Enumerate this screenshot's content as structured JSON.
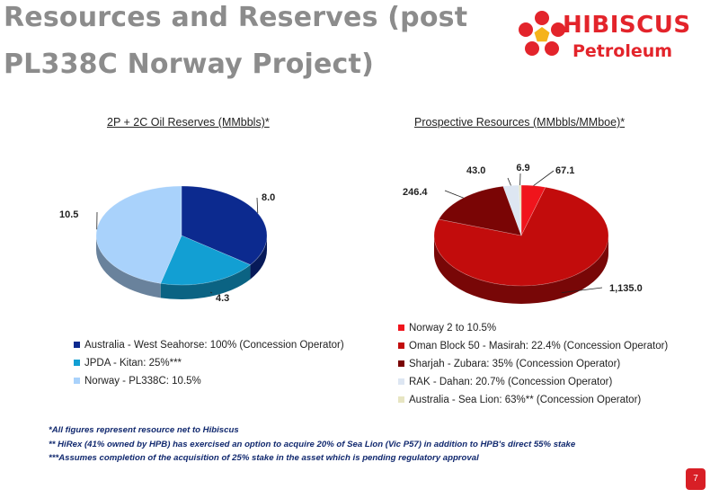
{
  "page": {
    "title": "Resources and Reserves (post PL338C Norway Project)",
    "page_number": "7"
  },
  "logo": {
    "name": "HIBISCUS",
    "sub": "Petroleum",
    "colors": {
      "red": "#e3242b",
      "yellow": "#f5b31a"
    }
  },
  "chart_data": [
    {
      "type": "pie",
      "style": "3d",
      "title": "2P + 2C Oil Reserves (MMbbls)*",
      "legend_position": "bottom",
      "series": [
        {
          "name": "Australia - West Seahorse: 100% (Concession Operator)",
          "value": 8.0,
          "label": "8.0",
          "color": "#0c2a8f"
        },
        {
          "name": "JPDA - Kitan: 25%***",
          "value": 4.3,
          "label": "4.3",
          "color": "#129fd3"
        },
        {
          "name": "Norway - PL338C: 10.5%",
          "value": 10.5,
          "label": "10.5",
          "color": "#a9d2fb"
        }
      ]
    },
    {
      "type": "pie",
      "style": "3d",
      "title": "Prospective Resources (MMbbls/MMboe)*",
      "legend_position": "bottom",
      "series": [
        {
          "name": "Norway 2 to 10.5%",
          "value": 67.1,
          "label": "67.1",
          "color": "#f0141c"
        },
        {
          "name": "Oman Block 50 - Masirah: 22.4% (Concession Operator)",
          "value": 1135.0,
          "label": "1,135.0",
          "color": "#c20c0c"
        },
        {
          "name": "Sharjah - Zubara: 35% (Concession Operator)",
          "value": 246.4,
          "label": "246.4",
          "color": "#7a0505"
        },
        {
          "name": "RAK - Dahan: 20.7% (Concession Operator)",
          "value": 43.0,
          "label": "43.0",
          "color": "#dde6f2"
        },
        {
          "name": "Australia - Sea Lion: 63%** (Concession Operator)",
          "value": 6.9,
          "label": "6.9",
          "color": "#e7e5c2"
        }
      ]
    }
  ],
  "footnotes": [
    "*All figures represent resource net to Hibiscus",
    "** HiRex (41% owned by HPB) has exercised an option to acquire 20% of Sea Lion (Vic P57) in addition to HPB's direct 55% stake",
    "***Assumes completion of the acquisition of 25% stake in the asset which is pending regulatory approval"
  ]
}
